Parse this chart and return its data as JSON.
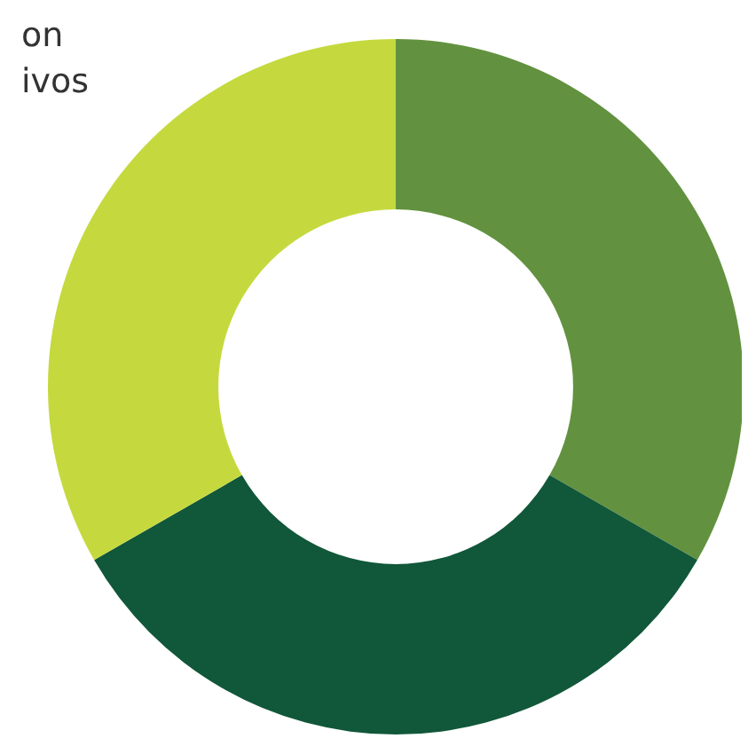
{
  "chart_data": {
    "type": "donut",
    "categories": [
      null,
      null,
      null
    ],
    "values": [
      33.3,
      33.4,
      33.3
    ],
    "colors": [
      "#62923f",
      "#11573a",
      "#c5d93e"
    ],
    "annotations": [
      "on",
      "ivos"
    ]
  }
}
